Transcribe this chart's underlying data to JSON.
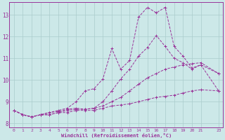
{
  "xlabel": "Windchill (Refroidissement éolien,°C)",
  "bg_color": "#cce8e8",
  "grid_color": "#aacccc",
  "line_color": "#993399",
  "xlim": [
    -0.5,
    23.5
  ],
  "ylim": [
    7.8,
    13.6
  ],
  "yticks": [
    8,
    9,
    10,
    11,
    12,
    13
  ],
  "xticks": [
    0,
    1,
    2,
    3,
    4,
    5,
    6,
    7,
    8,
    9,
    10,
    11,
    12,
    13,
    14,
    15,
    16,
    17,
    18,
    19,
    20,
    21,
    23
  ],
  "series1_x": [
    0,
    1,
    2,
    3,
    4,
    5,
    6,
    7,
    8,
    9,
    10,
    11,
    12,
    13,
    14,
    15,
    16,
    17,
    18,
    19,
    20,
    21,
    23
  ],
  "series1_y": [
    8.6,
    8.4,
    8.3,
    8.4,
    8.4,
    8.5,
    8.5,
    8.6,
    8.6,
    8.6,
    8.7,
    8.8,
    8.85,
    8.9,
    9.0,
    9.1,
    9.2,
    9.25,
    9.3,
    9.4,
    9.5,
    9.55,
    9.5
  ],
  "series2_x": [
    0,
    1,
    2,
    3,
    4,
    5,
    6,
    7,
    8,
    9,
    10,
    11,
    12,
    13,
    14,
    15,
    16,
    17,
    18,
    19,
    20,
    21,
    23
  ],
  "series2_y": [
    8.6,
    8.4,
    8.3,
    8.4,
    8.4,
    8.5,
    8.6,
    8.65,
    8.65,
    8.7,
    8.8,
    9.0,
    9.2,
    9.5,
    9.8,
    10.1,
    10.3,
    10.5,
    10.6,
    10.7,
    10.75,
    10.8,
    10.3
  ],
  "series3_x": [
    0,
    1,
    2,
    3,
    4,
    5,
    6,
    7,
    8,
    9,
    10,
    11,
    12,
    13,
    14,
    15,
    16,
    17,
    18,
    19,
    20,
    21,
    23
  ],
  "series3_y": [
    8.6,
    8.4,
    8.3,
    8.4,
    8.5,
    8.6,
    8.7,
    9.0,
    9.5,
    9.6,
    10.05,
    11.45,
    10.5,
    10.9,
    12.9,
    13.35,
    13.1,
    13.35,
    11.55,
    11.1,
    10.55,
    10.7,
    9.5
  ],
  "series4_x": [
    0,
    1,
    2,
    3,
    4,
    5,
    6,
    7,
    8,
    9,
    10,
    11,
    12,
    13,
    14,
    15,
    16,
    17,
    18,
    19,
    20,
    21,
    23
  ],
  "series4_y": [
    8.6,
    8.4,
    8.3,
    8.4,
    8.5,
    8.55,
    8.65,
    8.7,
    8.65,
    8.7,
    9.0,
    9.5,
    10.05,
    10.5,
    11.1,
    11.5,
    12.05,
    11.55,
    11.0,
    10.8,
    10.5,
    10.7,
    10.3
  ]
}
